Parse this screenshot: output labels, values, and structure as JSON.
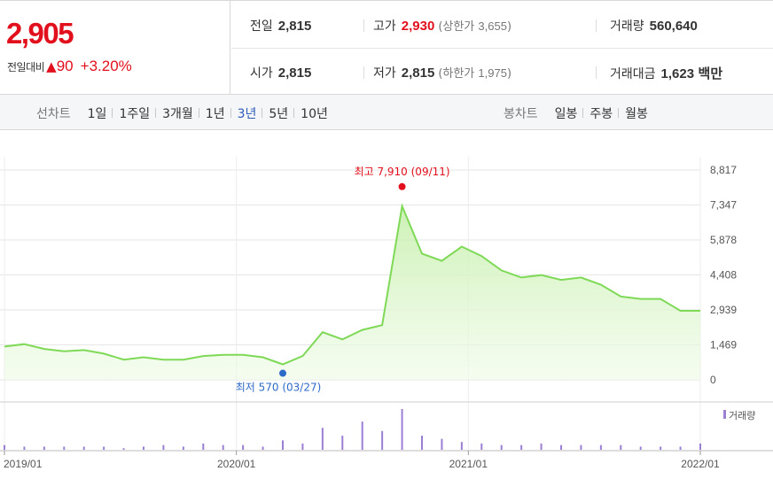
{
  "quote": {
    "price": "2,905",
    "change_label": "전일대비",
    "change_arrow": "▲",
    "change_value": "90",
    "change_pct": "+3.20%",
    "prev_close_label": "전일",
    "prev_close": "2,815",
    "high_label": "고가",
    "high": "2,930",
    "upper_limit_label": "상한가",
    "upper_limit": "3,655",
    "volume_label": "거래량",
    "volume": "560,640",
    "open_label": "시가",
    "open": "2,815",
    "low_label": "저가",
    "low": "2,815",
    "lower_limit_label": "하한가",
    "lower_limit": "1,975",
    "amount_label": "거래대금",
    "amount": "1,623",
    "amount_unit": "백만"
  },
  "tabs": {
    "line_label": "선차트",
    "line_periods": [
      "1일",
      "1주일",
      "3개월",
      "1년",
      "3년",
      "5년",
      "10년"
    ],
    "line_active": "3년",
    "candle_label": "봉차트",
    "candle_periods": [
      "일봉",
      "주봉",
      "월봉"
    ]
  },
  "colors": {
    "up": "#e2101d",
    "active_tab": "#2e5cb8",
    "line": "#7ed957",
    "fill_top": "#d6f5c4",
    "volume_bar": "#9b7fd4",
    "low_marker": "#2e6bc8"
  },
  "chart_data": {
    "type": "area",
    "x_labels": [
      "2019/01",
      "2020/01",
      "2021/01",
      "2022/01"
    ],
    "y_ticks": [
      "8,817",
      "7,347",
      "5,878",
      "4,408",
      "2,939",
      "1,469",
      "0"
    ],
    "ylim": [
      0,
      8817
    ],
    "grid": true,
    "annotation_high": "최고 7,910 (09/11)",
    "annotation_low": "최저 570 (03/27)",
    "volume_legend": "거래량",
    "x": [
      "2019/01",
      "2019/02",
      "2019/03",
      "2019/04",
      "2019/05",
      "2019/06",
      "2019/07",
      "2019/08",
      "2019/09",
      "2019/10",
      "2019/11",
      "2019/12",
      "2020/01",
      "2020/02",
      "2020/03",
      "2020/04",
      "2020/05",
      "2020/06",
      "2020/07",
      "2020/08",
      "2020/09",
      "2020/10",
      "2020/11",
      "2020/12",
      "2021/01",
      "2021/02",
      "2021/03",
      "2021/04",
      "2021/05",
      "2021/06",
      "2021/07",
      "2021/08",
      "2021/09",
      "2021/10",
      "2021/11",
      "2021/12"
    ],
    "price": [
      1400,
      1500,
      1300,
      1200,
      1250,
      1100,
      850,
      950,
      850,
      850,
      1000,
      1050,
      1050,
      950,
      650,
      1000,
      2000,
      1700,
      2100,
      2300,
      7300,
      5300,
      5000,
      5600,
      5200,
      4600,
      4300,
      4400,
      4200,
      4300,
      4000,
      3500,
      3400,
      3400,
      2900,
      2900
    ],
    "volume": [
      3,
      2,
      2,
      2,
      2,
      2,
      1,
      2,
      3,
      2,
      4,
      3,
      3,
      2,
      6,
      4,
      14,
      9,
      18,
      12,
      26,
      9,
      7,
      5,
      4,
      3,
      3,
      4,
      3,
      3,
      3,
      3,
      2,
      2,
      2,
      4
    ]
  }
}
